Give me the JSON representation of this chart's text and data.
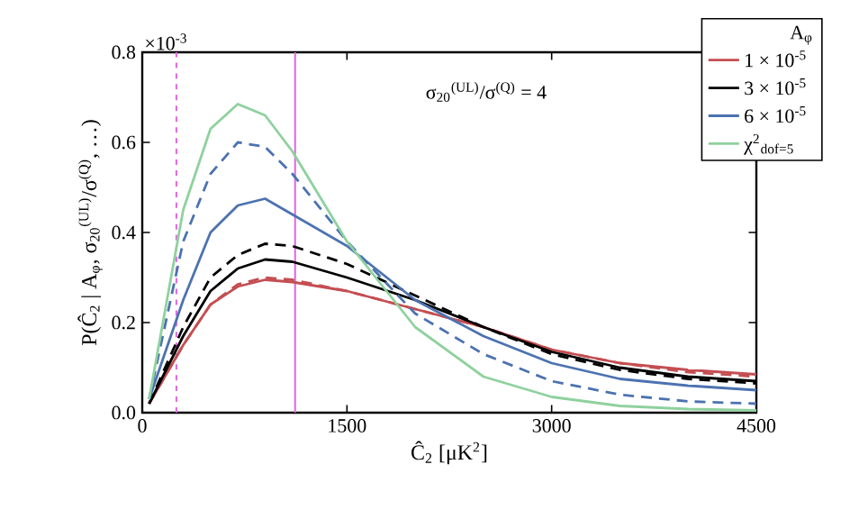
{
  "chart_data": {
    "type": "line",
    "xlabel": "Ĉ$_{2}$ [μK$^{2}$]",
    "ylabel": "P(Ĉ$_{2}$ | A$_{φ}$, σ$_{20}$$^{(UL)}$/σ$^{(Q)}$, …)",
    "legend_title": "A$_{φ}$",
    "legend": "top right",
    "annotations": [
      "×10$^{-3}$",
      "σ$_{20}$$^{(UL)}$/σ$^{(Q)}$ = 4"
    ],
    "x": [
      50,
      300,
      500,
      700,
      900,
      1100,
      1500,
      2000,
      2500,
      3000,
      3500,
      4000,
      4500
    ],
    "series": [
      {
        "name": "1 × 10$^{-5}$",
        "color": "#c44e52",
        "values": [
          0.02,
          0.15,
          0.24,
          0.28,
          0.295,
          0.29,
          0.27,
          0.23,
          0.19,
          0.14,
          0.11,
          0.095,
          0.085
        ]
      },
      {
        "color": "#c44e52",
        "line_style": "dashed",
        "values": [
          0.02,
          0.15,
          0.24,
          0.285,
          0.3,
          0.295,
          0.27,
          0.23,
          0.19,
          0.14,
          0.11,
          0.09,
          0.08
        ]
      },
      {
        "name": "3 × 10$^{-5}$",
        "color": "#000000",
        "values": [
          0.02,
          0.17,
          0.27,
          0.32,
          0.34,
          0.335,
          0.3,
          0.25,
          0.19,
          0.135,
          0.1,
          0.08,
          0.07
        ]
      },
      {
        "color": "#000000",
        "line_style": "dashed",
        "values": [
          0.02,
          0.19,
          0.3,
          0.35,
          0.375,
          0.37,
          0.33,
          0.26,
          0.19,
          0.13,
          0.095,
          0.075,
          0.065
        ]
      },
      {
        "name": "6 × 10$^{-5}$",
        "color": "#4c72b0",
        "values": [
          0.03,
          0.25,
          0.4,
          0.46,
          0.475,
          0.44,
          0.37,
          0.25,
          0.17,
          0.11,
          0.075,
          0.06,
          0.05
        ]
      },
      {
        "color": "#4c72b0",
        "line_style": "dashed",
        "values": [
          0.03,
          0.38,
          0.53,
          0.6,
          0.59,
          0.53,
          0.38,
          0.22,
          0.13,
          0.07,
          0.04,
          0.025,
          0.02
        ]
      },
      {
        "name": "χ$^{2}$$_{dof=5}$",
        "color": "#8fd19e",
        "values": [
          0.03,
          0.45,
          0.63,
          0.685,
          0.66,
          0.58,
          0.38,
          0.19,
          0.08,
          0.035,
          0.015,
          0.008,
          0.005
        ]
      }
    ],
    "ref_lines": [
      {
        "axis": "x",
        "value": 250,
        "color": "#e066e0",
        "line_style": "dashed"
      },
      {
        "axis": "x",
        "value": 1120,
        "color": "#e066e0",
        "line_style": "solid"
      }
    ],
    "xlim": [
      0,
      4500
    ],
    "ylim": [
      0,
      0.8
    ],
    "xticks": [
      0,
      1500,
      3000,
      4500
    ],
    "yticks": [
      {
        "value": 0,
        "label": "0.0"
      },
      0.2,
      0.4,
      0.6,
      0.8
    ]
  }
}
